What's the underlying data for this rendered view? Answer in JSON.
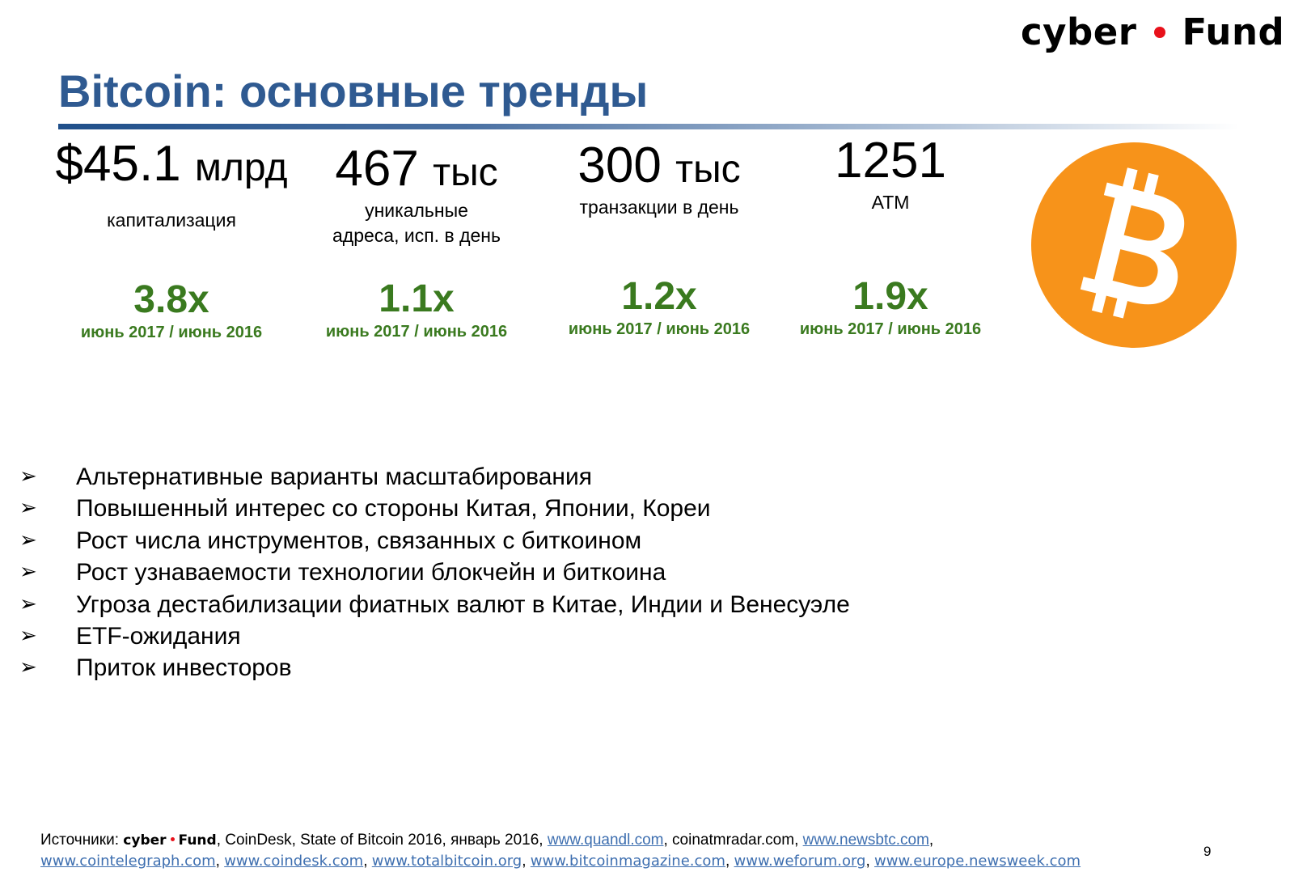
{
  "logo": {
    "left_text": "cyber",
    "right_text": "Fund",
    "dot_color": "#e8111b"
  },
  "title": "Bitcoin: основные тренды",
  "stats": [
    {
      "value": "$45.1",
      "unit": "млрд",
      "label": "капитализация",
      "growth": "3.8x",
      "period": "июнь 2017 / июнь 2016"
    },
    {
      "value": "467",
      "unit": "тыс",
      "label": "уникальные\nадреса, исп. в день",
      "growth": "1.1x",
      "period": "июнь 2017 / июнь 2016"
    },
    {
      "value": "300",
      "unit": "тыс",
      "label": "транзакции в день",
      "growth": "1.2x",
      "period": "июнь 2017 / июнь 2016"
    },
    {
      "value": "1251",
      "unit": "",
      "label": "ATM",
      "growth": "1.9x",
      "period": "июнь 2017 / июнь 2016"
    }
  ],
  "bitcoin_icon": {
    "name": "bitcoin-icon",
    "color": "#f7931a"
  },
  "bullets": [
    "Альтернативные варианты масштабирования",
    "Повышенный интерес со стороны Китая, Японии, Кореи",
    "Рост числа инструментов, связанных с биткоином",
    "Рост узнаваемости технологии блокчейн и биткоина",
    "Угроза дестабилизации фиатных валют в Китае, Индии и Венесуэле",
    "ETF-ожидания",
    "Приток инвесторов"
  ],
  "sources": {
    "prefix": "Источники:",
    "logo_left": "cyber",
    "logo_right": "Fund",
    "text1": ", CoinDesk, State of Bitcoin 2016, январь 2016, ",
    "link1": "www.quandl.com",
    "text2": ", coinatmradar.com, ",
    "link2": "www.newsbtc.com",
    "text3": ",",
    "links_line2": [
      "www.cointelegraph.com",
      "www.coindesk.com",
      "www.totalbitcoin.org",
      "www.bitcoinmagazine.com",
      "www.weforum.org",
      "www.europe.newsweek.com"
    ]
  },
  "page_number": "9"
}
